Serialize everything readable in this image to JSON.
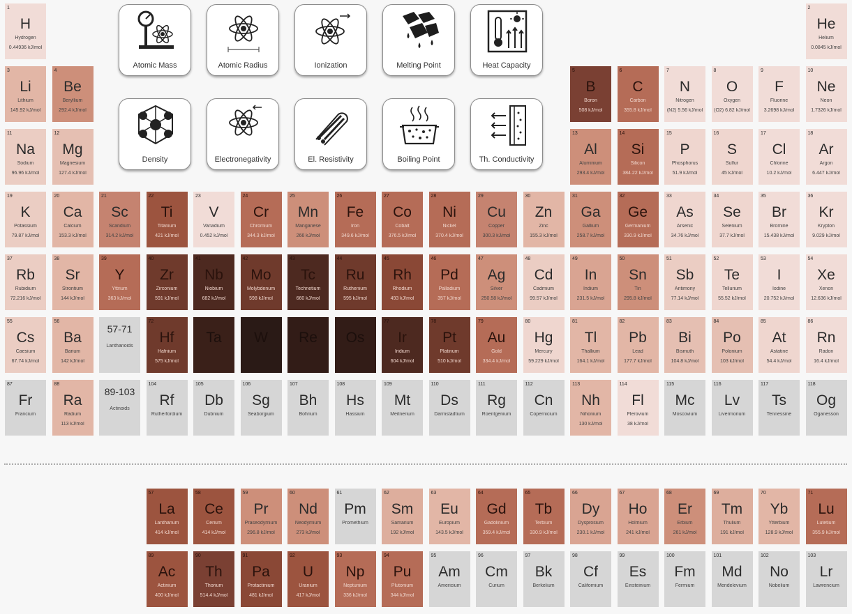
{
  "properties": [
    {
      "label": "Atomic Mass",
      "icon": "atomic-mass-icon"
    },
    {
      "label": "Atomic Radius",
      "icon": "atomic-radius-icon"
    },
    {
      "label": "Ionization",
      "icon": "ionization-icon"
    },
    {
      "label": "Melting Point",
      "icon": "melting-point-icon"
    },
    {
      "label": "Heat Capacity",
      "icon": "heat-capacity-icon"
    },
    {
      "label": "Density",
      "icon": "density-icon"
    },
    {
      "label": "Electronegativity",
      "icon": "electronegativity-icon"
    },
    {
      "label": "El. Resistivity",
      "icon": "el-resistivity-icon"
    },
    {
      "label": "Boiling Point",
      "icon": "boiling-point-icon"
    },
    {
      "label": "Th. Conductivity",
      "icon": "th-conductivity-icon"
    }
  ],
  "elements": [
    {
      "n": "1",
      "s": "H",
      "name": "Hydrogen",
      "v": "0.44936 kJ/mol",
      "r": 1,
      "c": 1,
      "bg": "#f1dcd7"
    },
    {
      "n": "2",
      "s": "He",
      "name": "Helium",
      "v": "0.0845 kJ/mol",
      "r": 1,
      "c": 18,
      "bg": "#f1dcd7"
    },
    {
      "n": "3",
      "s": "Li",
      "name": "Lithium",
      "v": "145.92 kJ/mol",
      "r": 2,
      "c": 1,
      "bg": "#e2b6a6"
    },
    {
      "n": "4",
      "s": "Be",
      "name": "Beryllium",
      "v": "292.4 kJ/mol",
      "r": 2,
      "c": 2,
      "bg": "#cd8f7a"
    },
    {
      "n": "5",
      "s": "B",
      "name": "Boron",
      "v": "508 kJ/mol",
      "r": 2,
      "c": 13,
      "bg": "#7a4033"
    },
    {
      "n": "6",
      "s": "C",
      "name": "Carbon",
      "v": "355.8 kJ/mol",
      "r": 2,
      "c": 14,
      "bg": "#b56c57"
    },
    {
      "n": "7",
      "s": "N",
      "name": "Nitrogen",
      "v": "(N2) 5.56 kJ/mol",
      "r": 2,
      "c": 15,
      "bg": "#f1dcd7"
    },
    {
      "n": "8",
      "s": "O",
      "name": "Oxygen",
      "v": "(O2) 6.82 kJ/mol",
      "r": 2,
      "c": 16,
      "bg": "#f1dcd7"
    },
    {
      "n": "9",
      "s": "F",
      "name": "Fluorine",
      "v": "3.2698 kJ/mol",
      "r": 2,
      "c": 17,
      "bg": "#f1dcd7"
    },
    {
      "n": "10",
      "s": "Ne",
      "name": "Neon",
      "v": "1.7326 kJ/mol",
      "r": 2,
      "c": 18,
      "bg": "#f1dcd7"
    },
    {
      "n": "11",
      "s": "Na",
      "name": "Sodium",
      "v": "96.96 kJ/mol",
      "r": 3,
      "c": 1,
      "bg": "#ebcdc3"
    },
    {
      "n": "12",
      "s": "Mg",
      "name": "Magnesium",
      "v": "127.4 kJ/mol",
      "r": 3,
      "c": 2,
      "bg": "#e5bfb2"
    },
    {
      "n": "13",
      "s": "Al",
      "name": "Aluminium",
      "v": "293.4 kJ/mol",
      "r": 3,
      "c": 13,
      "bg": "#cd8f7a"
    },
    {
      "n": "14",
      "s": "Si",
      "name": "Silicon",
      "v": "384.22 kJ/mol",
      "r": 3,
      "c": 14,
      "bg": "#b56c57"
    },
    {
      "n": "15",
      "s": "P",
      "name": "Phosphorus",
      "v": "51.9 kJ/mol",
      "r": 3,
      "c": 15,
      "bg": "#efd6cf"
    },
    {
      "n": "16",
      "s": "S",
      "name": "Sulfur",
      "v": "45 kJ/mol",
      "r": 3,
      "c": 16,
      "bg": "#efd6cf"
    },
    {
      "n": "17",
      "s": "Cl",
      "name": "Chlorine",
      "v": "10.2 kJ/mol",
      "r": 3,
      "c": 17,
      "bg": "#f1dcd7"
    },
    {
      "n": "18",
      "s": "Ar",
      "name": "Argon",
      "v": "6.447 kJ/mol",
      "r": 3,
      "c": 18,
      "bg": "#f1dcd7"
    },
    {
      "n": "19",
      "s": "K",
      "name": "Potassium",
      "v": "79.87 kJ/mol",
      "r": 4,
      "c": 1,
      "bg": "#ebcdc3"
    },
    {
      "n": "20",
      "s": "Ca",
      "name": "Calcium",
      "v": "153.3 kJ/mol",
      "r": 4,
      "c": 2,
      "bg": "#e2b6a6"
    },
    {
      "n": "21",
      "s": "Sc",
      "name": "Scandium",
      "v": "314.2 kJ/mol",
      "r": 4,
      "c": 3,
      "bg": "#c58370"
    },
    {
      "n": "22",
      "s": "Ti",
      "name": "Titanium",
      "v": "421 kJ/mol",
      "r": 4,
      "c": 4,
      "bg": "#9c543f"
    },
    {
      "n": "23",
      "s": "V",
      "name": "Vanadium",
      "v": "0.452 kJ/mol",
      "r": 4,
      "c": 5,
      "bg": "#f1dcd7"
    },
    {
      "n": "24",
      "s": "Cr",
      "name": "Chromium",
      "v": "344.3 kJ/mol",
      "r": 4,
      "c": 6,
      "bg": "#b56c57"
    },
    {
      "n": "25",
      "s": "Mn",
      "name": "Manganese",
      "v": "266 kJ/mol",
      "r": 4,
      "c": 7,
      "bg": "#cd8f7a"
    },
    {
      "n": "26",
      "s": "Fe",
      "name": "Iron",
      "v": "349.6 kJ/mol",
      "r": 4,
      "c": 8,
      "bg": "#b56c57"
    },
    {
      "n": "27",
      "s": "Co",
      "name": "Cobalt",
      "v": "376.5 kJ/mol",
      "r": 4,
      "c": 9,
      "bg": "#b56c57"
    },
    {
      "n": "28",
      "s": "Ni",
      "name": "Nickel",
      "v": "370.4 kJ/mol",
      "r": 4,
      "c": 10,
      "bg": "#b56c57"
    },
    {
      "n": "29",
      "s": "Cu",
      "name": "Copper",
      "v": "300.3 kJ/mol",
      "r": 4,
      "c": 11,
      "bg": "#c58370"
    },
    {
      "n": "30",
      "s": "Zn",
      "name": "Zinc",
      "v": "155.3 kJ/mol",
      "r": 4,
      "c": 12,
      "bg": "#e2b6a6"
    },
    {
      "n": "31",
      "s": "Ga",
      "name": "Gallium",
      "v": "258.7 kJ/mol",
      "r": 4,
      "c": 13,
      "bg": "#cd8f7a"
    },
    {
      "n": "32",
      "s": "Ge",
      "name": "Germanium",
      "v": "330.9 kJ/mol",
      "r": 4,
      "c": 14,
      "bg": "#b56c57"
    },
    {
      "n": "33",
      "s": "As",
      "name": "Arsenic",
      "v": "34.76 kJ/mol",
      "r": 4,
      "c": 15,
      "bg": "#efd6cf"
    },
    {
      "n": "34",
      "s": "Se",
      "name": "Selenium",
      "v": "37.7 kJ/mol",
      "r": 4,
      "c": 16,
      "bg": "#efd6cf"
    },
    {
      "n": "35",
      "s": "Br",
      "name": "Bromine",
      "v": "15.438 kJ/mol",
      "r": 4,
      "c": 17,
      "bg": "#f1dcd7"
    },
    {
      "n": "36",
      "s": "Kr",
      "name": "Krypton",
      "v": "9.029 kJ/mol",
      "r": 4,
      "c": 18,
      "bg": "#f1dcd7"
    },
    {
      "n": "37",
      "s": "Rb",
      "name": "Rubidium",
      "v": "72.216 kJ/mol",
      "r": 5,
      "c": 1,
      "bg": "#ebcdc3"
    },
    {
      "n": "38",
      "s": "Sr",
      "name": "Strontium",
      "v": "144 kJ/mol",
      "r": 5,
      "c": 2,
      "bg": "#e2b6a6"
    },
    {
      "n": "39",
      "s": "Y",
      "name": "Yttrium",
      "v": "363 kJ/mol",
      "r": 5,
      "c": 3,
      "bg": "#b56c57"
    },
    {
      "n": "40",
      "s": "Zr",
      "name": "Zirconium",
      "v": "591 kJ/mol",
      "r": 5,
      "c": 4,
      "bg": "#6f3a2c"
    },
    {
      "n": "41",
      "s": "Nb",
      "name": "Niobium",
      "v": "682 kJ/mol",
      "r": 5,
      "c": 5,
      "bg": "#4d2920"
    },
    {
      "n": "42",
      "s": "Mo",
      "name": "Molybdenum",
      "v": "598 kJ/mol",
      "r": 5,
      "c": 6,
      "bg": "#6f3a2c"
    },
    {
      "n": "43",
      "s": "Tc",
      "name": "Technetium",
      "v": "660 kJ/mol",
      "r": 5,
      "c": 7,
      "bg": "#4d2920"
    },
    {
      "n": "44",
      "s": "Ru",
      "name": "Ruthenium",
      "v": "595 kJ/mol",
      "r": 5,
      "c": 8,
      "bg": "#6f3a2c"
    },
    {
      "n": "45",
      "s": "Rh",
      "name": "Rhodium",
      "v": "493 kJ/mol",
      "r": 5,
      "c": 9,
      "bg": "#8a4836"
    },
    {
      "n": "46",
      "s": "Pd",
      "name": "Palladium",
      "v": "357 kJ/mol",
      "r": 5,
      "c": 10,
      "bg": "#b56c57"
    },
    {
      "n": "47",
      "s": "Ag",
      "name": "Silver",
      "v": "250.58 kJ/mol",
      "r": 5,
      "c": 11,
      "bg": "#cd8f7a"
    },
    {
      "n": "48",
      "s": "Cd",
      "name": "Cadmium",
      "v": "99.57 kJ/mol",
      "r": 5,
      "c": 12,
      "bg": "#ebcdc3"
    },
    {
      "n": "49",
      "s": "In",
      "name": "Indium",
      "v": "231.5 kJ/mol",
      "r": 5,
      "c": 13,
      "bg": "#d9a492"
    },
    {
      "n": "50",
      "s": "Sn",
      "name": "Tin",
      "v": "295.8 kJ/mol",
      "r": 5,
      "c": 14,
      "bg": "#cd8f7a"
    },
    {
      "n": "51",
      "s": "Sb",
      "name": "Antimony",
      "v": "77.14 kJ/mol",
      "r": 5,
      "c": 15,
      "bg": "#ebcdc3"
    },
    {
      "n": "52",
      "s": "Te",
      "name": "Tellurium",
      "v": "55.52 kJ/mol",
      "r": 5,
      "c": 16,
      "bg": "#efd6cf"
    },
    {
      "n": "53",
      "s": "I",
      "name": "Iodine",
      "v": "20.752 kJ/mol",
      "r": 5,
      "c": 17,
      "bg": "#f1dcd7"
    },
    {
      "n": "54",
      "s": "Xe",
      "name": "Xenon",
      "v": "12.636 kJ/mol",
      "r": 5,
      "c": 18,
      "bg": "#f1dcd7"
    },
    {
      "n": "55",
      "s": "Cs",
      "name": "Caesium",
      "v": "67.74 kJ/mol",
      "r": 6,
      "c": 1,
      "bg": "#ebcdc3"
    },
    {
      "n": "56",
      "s": "Ba",
      "name": "Barium",
      "v": "142 kJ/mol",
      "r": 6,
      "c": 2,
      "bg": "#e2b6a6"
    },
    {
      "n": "",
      "s": "57-71",
      "name": "Lanthanoids",
      "v": "",
      "r": 6,
      "c": 3,
      "bg": "#d6d6d6",
      "ph": true
    },
    {
      "n": "72",
      "s": "Hf",
      "name": "Hafnium",
      "v": "575 kJ/mol",
      "r": 6,
      "c": 4,
      "bg": "#6f3a2c"
    },
    {
      "n": "",
      "s": "Ta",
      "name": "",
      "v": "",
      "r": 6,
      "c": 5,
      "bg": "#3a2019"
    },
    {
      "n": "",
      "s": "W",
      "name": "",
      "v": "",
      "r": 6,
      "c": 6,
      "bg": "#2a1a16"
    },
    {
      "n": "",
      "s": "Re",
      "name": "",
      "v": "",
      "r": 6,
      "c": 7,
      "bg": "#321c17"
    },
    {
      "n": "",
      "s": "Os",
      "name": "",
      "v": "",
      "r": 6,
      "c": 8,
      "bg": "#321c17"
    },
    {
      "n": "77",
      "s": "Ir",
      "name": "Iridium",
      "v": "604 kJ/mol",
      "r": 6,
      "c": 9,
      "bg": "#4d2920"
    },
    {
      "n": "78",
      "s": "Pt",
      "name": "Platinum",
      "v": "510 kJ/mol",
      "r": 6,
      "c": 10,
      "bg": "#6f3a2c"
    },
    {
      "n": "79",
      "s": "Au",
      "name": "Gold",
      "v": "334.4 kJ/mol",
      "r": 6,
      "c": 11,
      "bg": "#b56c57"
    },
    {
      "n": "80",
      "s": "Hg",
      "name": "Mercury",
      "v": "59.229 kJ/mol",
      "r": 6,
      "c": 12,
      "bg": "#efd6cf"
    },
    {
      "n": "81",
      "s": "Tl",
      "name": "Thallium",
      "v": "164.1 kJ/mol",
      "r": 6,
      "c": 13,
      "bg": "#e2b6a6"
    },
    {
      "n": "82",
      "s": "Pb",
      "name": "Lead",
      "v": "177.7 kJ/mol",
      "r": 6,
      "c": 14,
      "bg": "#e2b6a6"
    },
    {
      "n": "83",
      "s": "Bi",
      "name": "Bismuth",
      "v": "104.8 kJ/mol",
      "r": 6,
      "c": 15,
      "bg": "#e5bfb2"
    },
    {
      "n": "84",
      "s": "Po",
      "name": "Polonium",
      "v": "103 kJ/mol",
      "r": 6,
      "c": 16,
      "bg": "#e5bfb2"
    },
    {
      "n": "85",
      "s": "At",
      "name": "Astatine",
      "v": "54.4 kJ/mol",
      "r": 6,
      "c": 17,
      "bg": "#efd6cf"
    },
    {
      "n": "86",
      "s": "Rn",
      "name": "Radon",
      "v": "16.4 kJ/mol",
      "r": 6,
      "c": 18,
      "bg": "#f1dcd7"
    },
    {
      "n": "87",
      "s": "Fr",
      "name": "Francium",
      "v": "",
      "r": 7,
      "c": 1,
      "bg": "#d6d6d6"
    },
    {
      "n": "88",
      "s": "Ra",
      "name": "Radium",
      "v": "113 kJ/mol",
      "r": 7,
      "c": 2,
      "bg": "#e2b6a6"
    },
    {
      "n": "",
      "s": "89-103",
      "name": "Actinoids",
      "v": "",
      "r": 7,
      "c": 3,
      "bg": "#d6d6d6",
      "ph": true
    },
    {
      "n": "104",
      "s": "Rf",
      "name": "Rutherfordium",
      "v": "",
      "r": 7,
      "c": 4,
      "bg": "#d6d6d6"
    },
    {
      "n": "105",
      "s": "Db",
      "name": "Dubnium",
      "v": "",
      "r": 7,
      "c": 5,
      "bg": "#d6d6d6"
    },
    {
      "n": "106",
      "s": "Sg",
      "name": "Seaborgium",
      "v": "",
      "r": 7,
      "c": 6,
      "bg": "#d6d6d6"
    },
    {
      "n": "107",
      "s": "Bh",
      "name": "Bohrium",
      "v": "",
      "r": 7,
      "c": 7,
      "bg": "#d6d6d6"
    },
    {
      "n": "108",
      "s": "Hs",
      "name": "Hassium",
      "v": "",
      "r": 7,
      "c": 8,
      "bg": "#d6d6d6"
    },
    {
      "n": "109",
      "s": "Mt",
      "name": "Meitnerium",
      "v": "",
      "r": 7,
      "c": 9,
      "bg": "#d6d6d6"
    },
    {
      "n": "110",
      "s": "Ds",
      "name": "Darmstadtium",
      "v": "",
      "r": 7,
      "c": 10,
      "bg": "#d6d6d6"
    },
    {
      "n": "111",
      "s": "Rg",
      "name": "Roentgenium",
      "v": "",
      "r": 7,
      "c": 11,
      "bg": "#d6d6d6"
    },
    {
      "n": "112",
      "s": "Cn",
      "name": "Copernicium",
      "v": "",
      "r": 7,
      "c": 12,
      "bg": "#d6d6d6"
    },
    {
      "n": "113",
      "s": "Nh",
      "name": "Nihonium",
      "v": "130 kJ/mol",
      "r": 7,
      "c": 13,
      "bg": "#e2b6a6"
    },
    {
      "n": "114",
      "s": "Fl",
      "name": "Flerovium",
      "v": "38 kJ/mol",
      "r": 7,
      "c": 14,
      "bg": "#f1dcd7"
    },
    {
      "n": "115",
      "s": "Mc",
      "name": "Moscovium",
      "v": "",
      "r": 7,
      "c": 15,
      "bg": "#d6d6d6"
    },
    {
      "n": "116",
      "s": "Lv",
      "name": "Livermorium",
      "v": "",
      "r": 7,
      "c": 16,
      "bg": "#d6d6d6"
    },
    {
      "n": "117",
      "s": "Ts",
      "name": "Tennessine",
      "v": "",
      "r": 7,
      "c": 17,
      "bg": "#d6d6d6"
    },
    {
      "n": "118",
      "s": "Og",
      "name": "Oganesson",
      "v": "",
      "r": 7,
      "c": 18,
      "bg": "#d6d6d6"
    },
    {
      "n": "57",
      "s": "La",
      "name": "Lanthanum",
      "v": "414 kJ/mol",
      "r": 9,
      "c": 4,
      "bg": "#9c543f"
    },
    {
      "n": "58",
      "s": "Ce",
      "name": "Cerium",
      "v": "414 kJ/mol",
      "r": 9,
      "c": 5,
      "bg": "#9c543f"
    },
    {
      "n": "59",
      "s": "Pr",
      "name": "Praseodymium",
      "v": "296.8 kJ/mol",
      "r": 9,
      "c": 6,
      "bg": "#cd8f7a"
    },
    {
      "n": "60",
      "s": "Nd",
      "name": "Neodymium",
      "v": "273 kJ/mol",
      "r": 9,
      "c": 7,
      "bg": "#cd8f7a"
    },
    {
      "n": "61",
      "s": "Pm",
      "name": "Promethium",
      "v": "",
      "r": 9,
      "c": 8,
      "bg": "#d6d6d6"
    },
    {
      "n": "62",
      "s": "Sm",
      "name": "Samarium",
      "v": "192 kJ/mol",
      "r": 9,
      "c": 9,
      "bg": "#ddae9d"
    },
    {
      "n": "63",
      "s": "Eu",
      "name": "Europium",
      "v": "143.5 kJ/mol",
      "r": 9,
      "c": 10,
      "bg": "#e2b6a6"
    },
    {
      "n": "64",
      "s": "Gd",
      "name": "Gadolinium",
      "v": "359.4 kJ/mol",
      "r": 9,
      "c": 11,
      "bg": "#b56c57"
    },
    {
      "n": "65",
      "s": "Tb",
      "name": "Terbium",
      "v": "330.9 kJ/mol",
      "r": 9,
      "c": 12,
      "bg": "#b56c57"
    },
    {
      "n": "66",
      "s": "Dy",
      "name": "Dysprosium",
      "v": "230.1 kJ/mol",
      "r": 9,
      "c": 13,
      "bg": "#d9a492"
    },
    {
      "n": "67",
      "s": "Ho",
      "name": "Holmium",
      "v": "241 kJ/mol",
      "r": 9,
      "c": 14,
      "bg": "#d9a492"
    },
    {
      "n": "68",
      "s": "Er",
      "name": "Erbium",
      "v": "261 kJ/mol",
      "r": 9,
      "c": 15,
      "bg": "#cd8f7a"
    },
    {
      "n": "69",
      "s": "Tm",
      "name": "Thulium",
      "v": "191 kJ/mol",
      "r": 9,
      "c": 16,
      "bg": "#ddae9d"
    },
    {
      "n": "70",
      "s": "Yb",
      "name": "Ytterbium",
      "v": "128.9 kJ/mol",
      "r": 9,
      "c": 17,
      "bg": "#e2b6a6"
    },
    {
      "n": "71",
      "s": "Lu",
      "name": "Lutetium",
      "v": "355.9 kJ/mol",
      "r": 9,
      "c": 18,
      "bg": "#b56c57"
    },
    {
      "n": "89",
      "s": "Ac",
      "name": "Actinium",
      "v": "400 kJ/mol",
      "r": 10,
      "c": 4,
      "bg": "#9c543f"
    },
    {
      "n": "90",
      "s": "Th",
      "name": "Thorium",
      "v": "514.4 kJ/mol",
      "r": 10,
      "c": 5,
      "bg": "#7a4033"
    },
    {
      "n": "91",
      "s": "Pa",
      "name": "Protactinium",
      "v": "481 kJ/mol",
      "r": 10,
      "c": 6,
      "bg": "#8a4836"
    },
    {
      "n": "92",
      "s": "U",
      "name": "Uranium",
      "v": "417 kJ/mol",
      "r": 10,
      "c": 7,
      "bg": "#9c543f"
    },
    {
      "n": "93",
      "s": "Np",
      "name": "Neptunium",
      "v": "336 kJ/mol",
      "r": 10,
      "c": 8,
      "bg": "#b56c57"
    },
    {
      "n": "94",
      "s": "Pu",
      "name": "Plutonium",
      "v": "344 kJ/mol",
      "r": 10,
      "c": 9,
      "bg": "#b56c57"
    },
    {
      "n": "95",
      "s": "Am",
      "name": "Americium",
      "v": "",
      "r": 10,
      "c": 10,
      "bg": "#d6d6d6"
    },
    {
      "n": "96",
      "s": "Cm",
      "name": "Curium",
      "v": "",
      "r": 10,
      "c": 11,
      "bg": "#d6d6d6"
    },
    {
      "n": "97",
      "s": "Bk",
      "name": "Berkelium",
      "v": "",
      "r": 10,
      "c": 12,
      "bg": "#d6d6d6"
    },
    {
      "n": "98",
      "s": "Cf",
      "name": "Californium",
      "v": "",
      "r": 10,
      "c": 13,
      "bg": "#d6d6d6"
    },
    {
      "n": "99",
      "s": "Es",
      "name": "Einsteinium",
      "v": "",
      "r": 10,
      "c": 14,
      "bg": "#d6d6d6"
    },
    {
      "n": "100",
      "s": "Fm",
      "name": "Fermium",
      "v": "",
      "r": 10,
      "c": 15,
      "bg": "#d6d6d6"
    },
    {
      "n": "101",
      "s": "Md",
      "name": "Mendelevium",
      "v": "",
      "r": 10,
      "c": 16,
      "bg": "#d6d6d6"
    },
    {
      "n": "102",
      "s": "No",
      "name": "Nobelium",
      "v": "",
      "r": 10,
      "c": 17,
      "bg": "#d6d6d6"
    },
    {
      "n": "103",
      "s": "Lr",
      "name": "Lawrencium",
      "v": "",
      "r": 10,
      "c": 18,
      "bg": "#d6d6d6"
    }
  ]
}
